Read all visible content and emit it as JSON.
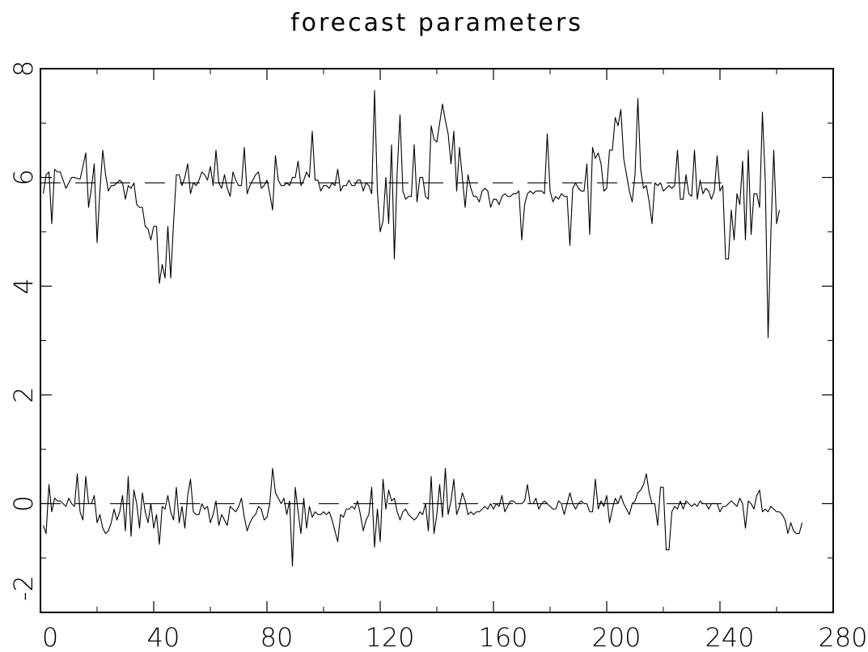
{
  "chart_data": {
    "type": "line",
    "title": "forecast parameters",
    "xlim": [
      0,
      280
    ],
    "ylim": [
      -2,
      8
    ],
    "x_ticks": [
      0,
      40,
      80,
      120,
      160,
      200,
      240,
      280
    ],
    "y_ticks": [
      -2,
      0,
      2,
      4,
      6,
      8
    ],
    "x_minor_step": 20,
    "y_minor_step": 1,
    "grid": false,
    "colors": {
      "line": "#000000",
      "background": "#ffffff"
    },
    "series": [
      {
        "style": "solid",
        "x_start": 1,
        "values": [
          5.7,
          6.05,
          6.1,
          5.15,
          6.15,
          6.1,
          6.1,
          5.95,
          5.8,
          5.9,
          6.0,
          6.0,
          5.98,
          5.97,
          6.2,
          6.45,
          5.45,
          5.8,
          6.25,
          4.8,
          5.75,
          6.5,
          6.05,
          5.75,
          5.85,
          5.85,
          5.9,
          5.95,
          5.9,
          5.6,
          5.85,
          5.8,
          5.9,
          5.5,
          5.45,
          5.45,
          5.1,
          5.05,
          4.85,
          5.1,
          5.1,
          4.05,
          4.4,
          4.15,
          5.1,
          4.15,
          5.15,
          6.05,
          6.05,
          5.85,
          6.0,
          6.25,
          5.7,
          5.9,
          5.85,
          5.95,
          6.1,
          6.05,
          5.95,
          6.2,
          5.85,
          6.5,
          5.9,
          5.8,
          6.05,
          5.8,
          5.65,
          6.1,
          5.95,
          5.85,
          5.85,
          6.55,
          5.7,
          5.85,
          5.95,
          6.05,
          6.1,
          5.8,
          5.85,
          5.95,
          5.7,
          5.4,
          6.4,
          5.95,
          5.85,
          5.85,
          5.9,
          5.85,
          6.0,
          6.0,
          6.3,
          5.85,
          5.95,
          6.1,
          6.0,
          6.85,
          5.95,
          5.95,
          5.75,
          5.85,
          5.85,
          5.8,
          5.9,
          5.85,
          6.15,
          5.75,
          5.85,
          5.85,
          5.95,
          5.85,
          5.85,
          5.95,
          5.95,
          5.75,
          5.9,
          5.85,
          5.7,
          7.6,
          5.75,
          5.0,
          5.2,
          6.0,
          5.15,
          6.6,
          4.5,
          6.1,
          7.15,
          5.75,
          5.6,
          5.65,
          5.65,
          6.6,
          5.55,
          6.0,
          6.0,
          5.65,
          5.6,
          6.95,
          6.7,
          6.65,
          7.0,
          7.35,
          7.05,
          6.8,
          6.25,
          6.85,
          5.75,
          6.55,
          6.0,
          5.45,
          6.05,
          5.8,
          5.65,
          5.65,
          5.55,
          5.75,
          5.8,
          5.75,
          5.45,
          5.6,
          5.6,
          5.5,
          5.65,
          5.7,
          5.65,
          5.65,
          5.7,
          5.7,
          5.75,
          4.85,
          5.5,
          5.7,
          5.75,
          5.7,
          5.75,
          5.75,
          5.75,
          5.7,
          6.8,
          5.75,
          5.55,
          5.65,
          5.6,
          5.7,
          5.65,
          5.65,
          4.75,
          5.8,
          5.9,
          5.8,
          5.75,
          5.75,
          6.25,
          4.95,
          6.55,
          6.35,
          6.45,
          6.25,
          5.75,
          5.8,
          6.5,
          6.5,
          7.1,
          6.95,
          7.25,
          6.35,
          6.05,
          5.75,
          5.55,
          6.05,
          7.45,
          6.15,
          5.8,
          5.85,
          5.55,
          5.15,
          5.9,
          5.85,
          5.9,
          5.75,
          5.8,
          5.85,
          5.8,
          5.85,
          6.5,
          5.6,
          5.6,
          6.05,
          5.7,
          5.65,
          6.5,
          5.6,
          5.95,
          5.7,
          5.8,
          5.75,
          5.6,
          5.75,
          6.4,
          5.75,
          5.85,
          4.5,
          4.5,
          5.4,
          4.85,
          5.7,
          5.5,
          6.3,
          4.85,
          6.5,
          4.95,
          5.7,
          5.7,
          5.45,
          7.2,
          5.95,
          3.05,
          5.0,
          6.5,
          5.15,
          5.4
        ]
      },
      {
        "style": "dashed",
        "x": [
          0,
          245
        ],
        "values": [
          5.9,
          5.9
        ]
      },
      {
        "style": "solid",
        "x_start": 1,
        "values": [
          -0.4,
          -0.55,
          0.35,
          -0.15,
          0.1,
          0.05,
          0.05,
          0.0,
          -0.05,
          0.1,
          0.0,
          -0.05,
          0.55,
          -0.15,
          -0.3,
          0.5,
          0.0,
          0.0,
          0.15,
          -0.35,
          -0.2,
          -0.45,
          -0.55,
          -0.5,
          -0.35,
          -0.1,
          -0.3,
          -0.15,
          0.15,
          -0.5,
          0.5,
          -0.6,
          0.25,
          0.0,
          -0.45,
          0.2,
          -0.15,
          -0.35,
          0.0,
          -0.45,
          -0.2,
          -0.75,
          -0.05,
          -0.1,
          0.15,
          -0.15,
          -0.3,
          0.3,
          -0.35,
          -0.05,
          -0.45,
          0.15,
          0.45,
          -0.15,
          -0.2,
          -0.2,
          0.0,
          -0.1,
          -0.05,
          -0.35,
          -0.2,
          0.05,
          -0.4,
          -0.2,
          -0.3,
          -0.4,
          -0.05,
          -0.1,
          -0.15,
          -0.05,
          0.1,
          -0.25,
          -0.5,
          -0.35,
          -0.25,
          -0.2,
          -0.05,
          -0.1,
          -0.3,
          -0.25,
          0.0,
          0.65,
          0.2,
          0.1,
          0.0,
          0.1,
          -0.2,
          0.05,
          -1.15,
          0.3,
          -0.15,
          -0.55,
          0.1,
          -0.45,
          -0.05,
          -0.25,
          -0.15,
          -0.2,
          -0.2,
          -0.15,
          -0.2,
          -0.15,
          -0.3,
          -0.5,
          -0.7,
          -0.2,
          -0.25,
          -0.1,
          -0.1,
          -0.05,
          -0.1,
          0.05,
          -0.2,
          -0.5,
          -0.3,
          -0.2,
          0.3,
          -0.8,
          -0.1,
          -0.7,
          0.45,
          -0.1,
          0.25,
          0.05,
          0.1,
          -0.15,
          -0.3,
          -0.15,
          -0.1,
          -0.2,
          -0.25,
          -0.3,
          -0.25,
          -0.15,
          -0.2,
          0.0,
          -0.5,
          0.5,
          -0.55,
          -0.2,
          0.35,
          -0.25,
          0.65,
          -0.2,
          0.05,
          0.45,
          -0.2,
          -0.05,
          0.2,
          0.05,
          -0.2,
          -0.15,
          -0.2,
          -0.15,
          -0.15,
          -0.1,
          -0.05,
          -0.1,
          0.0,
          -0.1,
          0.0,
          -0.05,
          0.15,
          -0.15,
          -0.05,
          0.05,
          0.05,
          0.0,
          0.0,
          0.0,
          0.05,
          0.35,
          0.0,
          0.0,
          0.1,
          -0.1,
          0.0,
          0.05,
          0.0,
          -0.05,
          -0.1,
          -0.1,
          0.05,
          0.0,
          -0.2,
          0.0,
          0.2,
          0.0,
          -0.1,
          0.0,
          0.05,
          0.0,
          0.0,
          -0.15,
          -0.15,
          0.45,
          -0.1,
          0.05,
          -0.05,
          0.15,
          -0.35,
          -0.1,
          0.1,
          0.0,
          0.15,
          0.0,
          -0.1,
          -0.2,
          0.0,
          0.05,
          0.2,
          0.25,
          0.35,
          0.55,
          0.2,
          0.0,
          0.0,
          -0.4,
          0.3,
          0.3,
          -0.85,
          -0.85,
          -0.15,
          -0.05,
          -0.1,
          0.05,
          -0.1,
          0.05,
          0.0,
          -0.05,
          0.0,
          -0.05,
          0.05,
          0.0,
          0.0,
          -0.1,
          0.0,
          0.0,
          0.0,
          -0.15,
          -0.05,
          -0.05,
          0.0,
          0.05,
          0.0,
          -0.05,
          0.1,
          0.0,
          -0.45,
          0.05,
          0.0,
          -0.1,
          0.15,
          0.25,
          -0.15,
          -0.1,
          -0.15,
          -0.05,
          -0.1,
          -0.15,
          -0.15,
          -0.2,
          -0.3,
          -0.55,
          -0.35,
          -0.5,
          -0.55,
          -0.55,
          -0.35
        ]
      },
      {
        "style": "dashed",
        "x": [
          0,
          245
        ],
        "values": [
          0.0,
          0.0
        ]
      }
    ]
  }
}
